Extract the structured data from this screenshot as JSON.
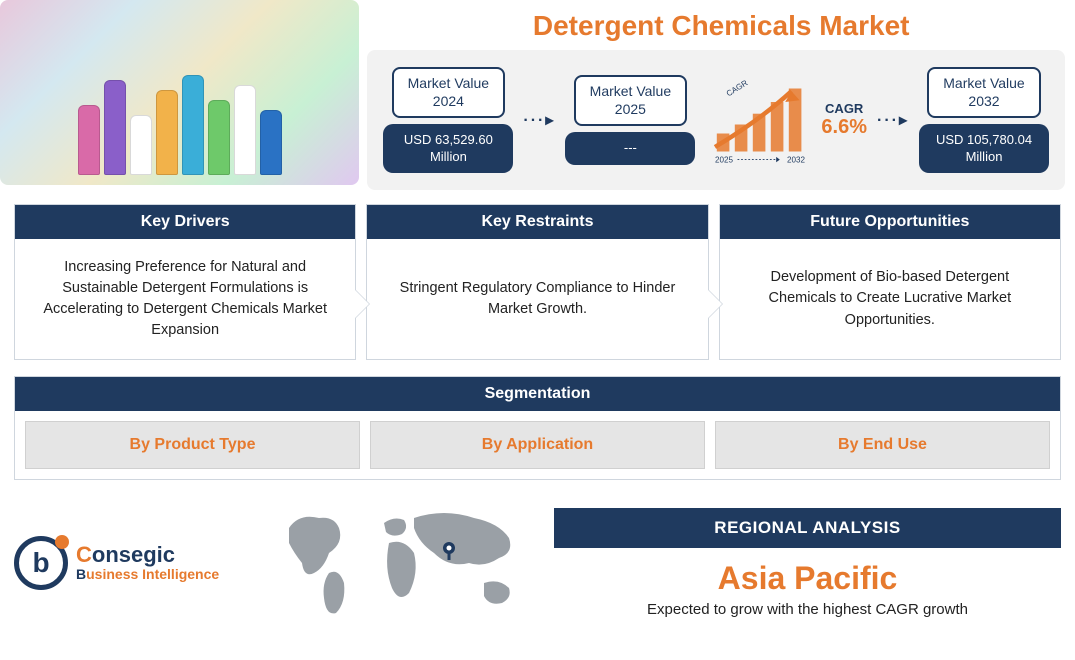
{
  "colors": {
    "accent_orange": "#e67a2e",
    "navy": "#1f3a5f",
    "panel_grey": "#f2f2f2",
    "map_grey": "#9aa0a6",
    "seg_item_bg": "#e5e5e5",
    "text_dark": "#222222"
  },
  "title": "Detergent Chemicals Market",
  "value_cards": [
    {
      "label_line1": "Market Value",
      "label_line2": "2024",
      "value": "USD 63,529.60 Million"
    },
    {
      "label_line1": "Market Value",
      "label_line2": "2025",
      "value": "---"
    },
    {
      "label_line1": "Market Value",
      "label_line2": "2032",
      "value": "USD 105,780.04 Million"
    }
  ],
  "cagr": {
    "label": "CAGR",
    "percent": "6.6%",
    "start_year": "2025",
    "end_year": "2032",
    "bar_heights": [
      20,
      30,
      42,
      55,
      70
    ],
    "bar_color": "#e67a2e",
    "arrow_color": "#e67a2e"
  },
  "factors": [
    {
      "header": "Key Drivers",
      "body": "Increasing Preference for Natural and Sustainable Detergent Formulations is Accelerating to Detergent Chemicals Market Expansion"
    },
    {
      "header": "Key Restraints",
      "body": "Stringent Regulatory Compliance to Hinder Market Growth."
    },
    {
      "header": "Future Opportunities",
      "body": "Development of Bio-based Detergent Chemicals to Create Lucrative Market Opportunities."
    }
  ],
  "segmentation": {
    "header": "Segmentation",
    "items": [
      "By Product Type",
      "By Application",
      "By End Use"
    ]
  },
  "logo": {
    "letter": "b",
    "line1a": "C",
    "line1b": "onsegic",
    "line2a": "B",
    "line2b": "usiness Intelligence"
  },
  "regional": {
    "header": "REGIONAL ANALYSIS",
    "region": "Asia Pacific",
    "subtitle": "Expected to grow with the highest CAGR growth"
  },
  "product_bottles": [
    {
      "h": 70,
      "c": "#d96aa8"
    },
    {
      "h": 95,
      "c": "#8a5fc9"
    },
    {
      "h": 60,
      "c": "#ffffff"
    },
    {
      "h": 85,
      "c": "#f2b24a"
    },
    {
      "h": 100,
      "c": "#3aaed8"
    },
    {
      "h": 75,
      "c": "#6ec96a"
    },
    {
      "h": 90,
      "c": "#ffffff"
    },
    {
      "h": 65,
      "c": "#2a72c4"
    }
  ]
}
